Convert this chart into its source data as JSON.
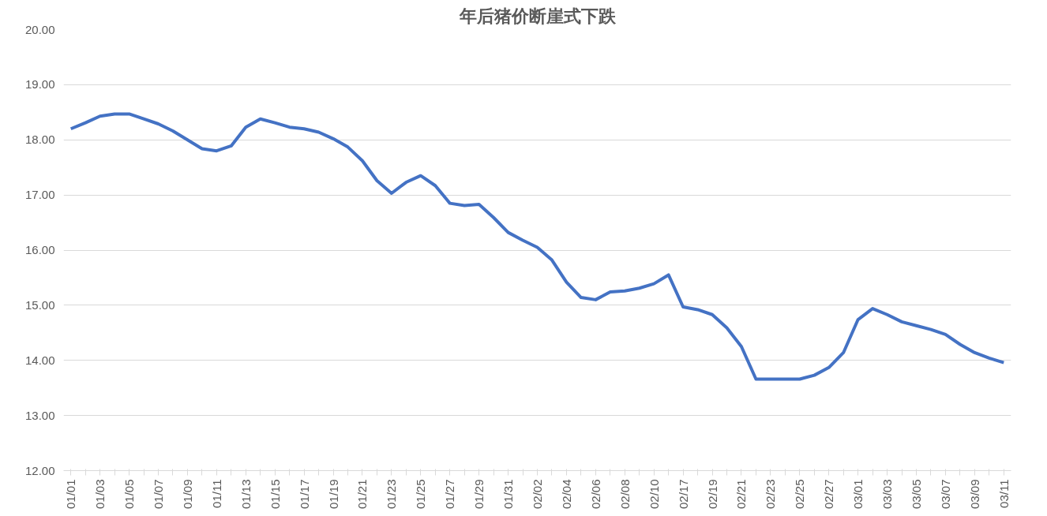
{
  "chart_data": {
    "type": "line",
    "title": "年后猪价断崖式下跌",
    "categories": [
      "01/01",
      null,
      "01/03",
      null,
      "01/05",
      null,
      "01/07",
      null,
      "01/09",
      null,
      "01/11",
      null,
      "01/13",
      null,
      "01/15",
      null,
      "01/17",
      null,
      "01/19",
      null,
      "01/21",
      null,
      "01/23",
      null,
      "01/25",
      null,
      "01/27",
      null,
      "01/29",
      null,
      "01/31",
      null,
      "02/02",
      null,
      "02/04",
      null,
      "02/06",
      null,
      "02/08",
      null,
      "02/10",
      null,
      "02/17",
      null,
      "02/19",
      null,
      "02/21",
      null,
      "02/23",
      null,
      "02/25",
      null,
      "02/27",
      null,
      "03/01",
      null,
      "03/03",
      null,
      "03/05",
      null,
      "03/07",
      null,
      "03/09",
      null,
      "03/11"
    ],
    "series": [
      {
        "color": "#4472c4",
        "values": [
          18.2,
          18.31,
          18.43,
          18.47,
          18.47,
          18.38,
          18.29,
          18.16,
          18.0,
          17.84,
          17.8,
          17.89,
          18.23,
          18.38,
          18.31,
          18.23,
          18.2,
          18.14,
          18.02,
          17.87,
          17.62,
          17.26,
          17.03,
          17.23,
          17.35,
          17.17,
          16.85,
          16.81,
          16.83,
          16.59,
          16.32,
          16.18,
          16.05,
          15.82,
          15.42,
          15.14,
          15.1,
          15.24,
          15.26,
          15.31,
          15.39,
          15.55,
          14.97,
          14.92,
          14.83,
          14.59,
          14.25,
          13.66,
          13.66,
          13.66,
          13.66,
          13.73,
          13.87,
          14.14,
          14.74,
          14.94,
          14.83,
          14.7,
          14.63,
          14.56,
          14.47,
          14.29,
          14.14,
          14.04,
          13.96
        ]
      }
    ],
    "ylim": [
      12,
      20
    ],
    "yticks": [
      {
        "value": 12,
        "label": "12.00"
      },
      {
        "value": 13,
        "label": "13.00"
      },
      {
        "value": 14,
        "label": "14.00"
      },
      {
        "value": 15,
        "label": "15.00"
      },
      {
        "value": 16,
        "label": "16.00"
      },
      {
        "value": 17,
        "label": "17.00"
      },
      {
        "value": 18,
        "label": "18.00"
      },
      {
        "value": 19,
        "label": "19.00"
      },
      {
        "value": 20,
        "label": "20.00"
      }
    ],
    "grid": "y",
    "marker": "none",
    "line_style": "solid"
  }
}
